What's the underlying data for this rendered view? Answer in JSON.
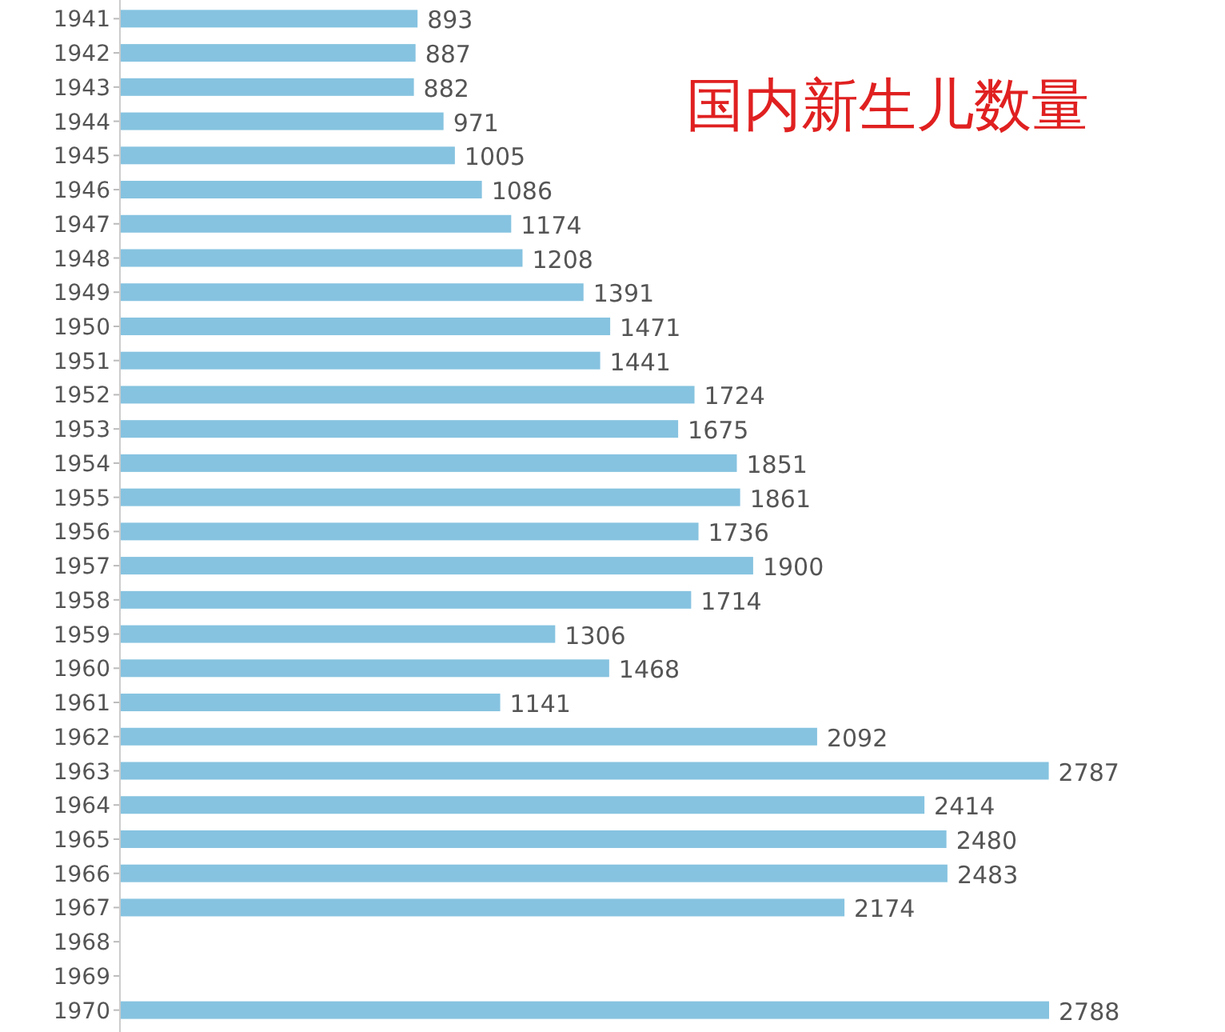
{
  "chart_data": {
    "type": "bar",
    "orientation": "horizontal",
    "title": "国内新生儿数量",
    "categories": [
      "1941",
      "1942",
      "1943",
      "1944",
      "1945",
      "1946",
      "1947",
      "1948",
      "1949",
      "1950",
      "1951",
      "1952",
      "1953",
      "1954",
      "1955",
      "1956",
      "1957",
      "1958",
      "1959",
      "1960",
      "1961",
      "1962",
      "1963",
      "1964",
      "1965",
      "1966",
      "1967",
      "1968",
      "1969",
      "1970"
    ],
    "values": [
      893,
      887,
      882,
      971,
      1005,
      1086,
      1174,
      1208,
      1391,
      1471,
      1441,
      1724,
      1675,
      1851,
      1861,
      1736,
      1900,
      1714,
      1306,
      1468,
      1141,
      2092,
      2787,
      2414,
      2480,
      2483,
      2174,
      null,
      null,
      2788
    ],
    "color": "#86c3e0",
    "data_labels": true
  }
}
